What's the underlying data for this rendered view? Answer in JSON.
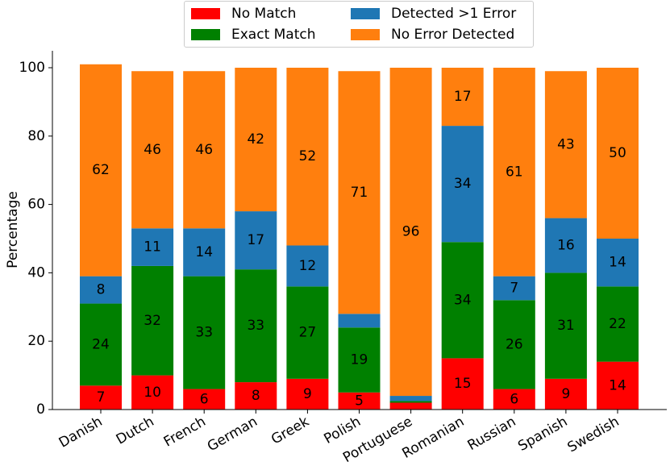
{
  "chart_data": {
    "type": "bar",
    "stacked": true,
    "title": "",
    "xlabel": "",
    "ylabel": "Percentage",
    "ylim": [
      0,
      100
    ],
    "yticks": [
      0,
      20,
      40,
      60,
      80,
      100
    ],
    "grid": false,
    "legend_position": "top",
    "categories": [
      "Danish",
      "Dutch",
      "French",
      "German",
      "Greek",
      "Polish",
      "Portuguese",
      "Romanian",
      "Russian",
      "Spanish",
      "Swedish"
    ],
    "series": [
      {
        "name": "No Match",
        "color": "#ff0000",
        "values": [
          7,
          10,
          6,
          8,
          9,
          5,
          2,
          15,
          6,
          9,
          14
        ],
        "labels": [
          "7",
          "10",
          "6",
          "8",
          "9",
          "5",
          "",
          "15",
          "6",
          "9",
          "14"
        ]
      },
      {
        "name": "Exact Match",
        "color": "#008000",
        "values": [
          24,
          32,
          33,
          33,
          27,
          19,
          0.5,
          34,
          26,
          31,
          22
        ],
        "labels": [
          "24",
          "32",
          "33",
          "33",
          "27",
          "19",
          "",
          "34",
          "26",
          "31",
          "22"
        ]
      },
      {
        "name": "Detected >1 Error",
        "color": "#1f77b4",
        "values": [
          8,
          11,
          14,
          17,
          12,
          4,
          1.5,
          34,
          7,
          16,
          14
        ],
        "labels": [
          "8",
          "11",
          "14",
          "17",
          "12",
          "",
          "",
          "34",
          "7",
          "16",
          "14"
        ]
      },
      {
        "name": "No Error Detected",
        "color": "#ff7f0e",
        "values": [
          62,
          46,
          46,
          42,
          52,
          71,
          96,
          17,
          61,
          43,
          50
        ],
        "labels": [
          "62",
          "46",
          "46",
          "42",
          "52",
          "71",
          "96",
          "17",
          "61",
          "43",
          "50"
        ]
      }
    ]
  }
}
